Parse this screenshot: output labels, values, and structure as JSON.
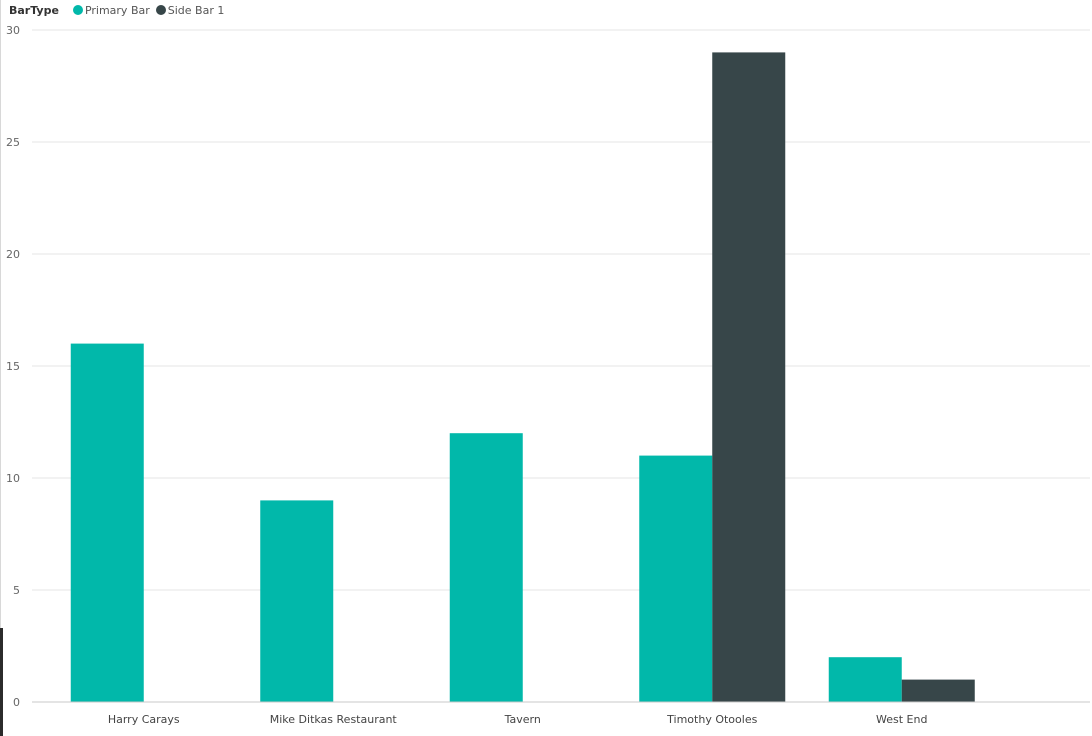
{
  "legend": {
    "title": "BarType",
    "items": [
      {
        "label": "Primary Bar",
        "color": "#01b8aa"
      },
      {
        "label": "Side Bar 1",
        "color": "#374649"
      }
    ]
  },
  "chart_data": {
    "type": "bar",
    "title": "",
    "xlabel": "",
    "ylabel": "",
    "categories": [
      "Harry Carays",
      "Mike Ditkas Restaurant",
      "Tavern",
      "Timothy Otooles",
      "West End"
    ],
    "series": [
      {
        "name": "Primary Bar",
        "color": "#01b8aa",
        "values": [
          16,
          9,
          12,
          11,
          2
        ]
      },
      {
        "name": "Side Bar 1",
        "color": "#374649",
        "values": [
          null,
          null,
          null,
          29,
          1
        ]
      }
    ],
    "ylim": [
      0,
      30
    ],
    "yticks": [
      0,
      5,
      10,
      15,
      20,
      25,
      30
    ],
    "grid": true,
    "legend_position": "top-left"
  }
}
